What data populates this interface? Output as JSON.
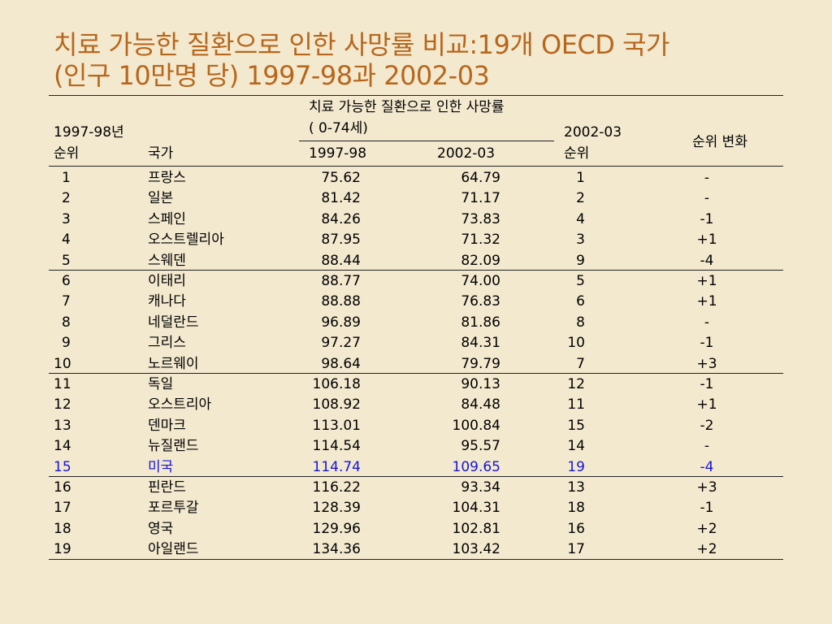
{
  "title": {
    "line1": "치료 가능한 질환으로 인한 사망률 비교:19개 OECD 국가",
    "line2": "(인구 10만명 당) 1997-98과 2002-03"
  },
  "header": {
    "rank1997_line1": "1997-98년",
    "rank1997_line2": "순위",
    "country": "국가",
    "mortality_line1": "치료 가능한 질환으로 인한 사망률",
    "mortality_line2": "( 0-74세)",
    "col_1997": "1997-98",
    "col_2002": "2002-03",
    "rank2002_line1": "2002-03",
    "rank2002_line2": "순위",
    "change": "순위 변화"
  },
  "rows": [
    {
      "rank1997": "1",
      "country": "프랑스",
      "v1997": "75.62",
      "v2002": "64.79",
      "rank2002": "1",
      "change": "-"
    },
    {
      "rank1997": "2",
      "country": "일본",
      "v1997": "81.42",
      "v2002": "71.17",
      "rank2002": "2",
      "change": "-"
    },
    {
      "rank1997": "3",
      "country": "스페인",
      "v1997": "84.26",
      "v2002": "73.83",
      "rank2002": "4",
      "change": "-1"
    },
    {
      "rank1997": "4",
      "country": "오스트렐리아",
      "v1997": "87.95",
      "v2002": "71.32",
      "rank2002": "3",
      "change": "+1"
    },
    {
      "rank1997": "5",
      "country": "스웨덴",
      "v1997": "88.44",
      "v2002": "82.09",
      "rank2002": "9",
      "change": "-4"
    },
    {
      "rank1997": "6",
      "country": "이태리",
      "v1997": "88.77",
      "v2002": "74.00",
      "rank2002": "5",
      "change": "+1"
    },
    {
      "rank1997": "7",
      "country": "캐나다",
      "v1997": "88.88",
      "v2002": "76.83",
      "rank2002": "6",
      "change": "+1"
    },
    {
      "rank1997": "8",
      "country": "네덜란드",
      "v1997": "96.89",
      "v2002": "81.86",
      "rank2002": "8",
      "change": "-"
    },
    {
      "rank1997": "9",
      "country": "그리스",
      "v1997": "97.27",
      "v2002": "84.31",
      "rank2002": "10",
      "change": "-1"
    },
    {
      "rank1997": "10",
      "country": "노르웨이",
      "v1997": "98.64",
      "v2002": "79.79",
      "rank2002": "7",
      "change": "+3"
    },
    {
      "rank1997": "11",
      "country": "독일",
      "v1997": "106.18",
      "v2002": "90.13",
      "rank2002": "12",
      "change": "-1"
    },
    {
      "rank1997": "12",
      "country": "오스트리아",
      "v1997": "108.92",
      "v2002": "84.48",
      "rank2002": "11",
      "change": "+1"
    },
    {
      "rank1997": "13",
      "country": "덴마크",
      "v1997": "113.01",
      "v2002": "100.84",
      "rank2002": "15",
      "change": "-2"
    },
    {
      "rank1997": "14",
      "country": "뉴질랜드",
      "v1997": "114.54",
      "v2002": "95.57",
      "rank2002": "14",
      "change": "-"
    },
    {
      "rank1997": "15",
      "country": "미국",
      "v1997": "114.74",
      "v2002": "109.65",
      "rank2002": "19",
      "change": "-4",
      "highlight": true
    },
    {
      "rank1997": "16",
      "country": "핀란드",
      "v1997": "116.22",
      "v2002": "93.34",
      "rank2002": "13",
      "change": "+3"
    },
    {
      "rank1997": "17",
      "country": "포르투갈",
      "v1997": "128.39",
      "v2002": "104.31",
      "rank2002": "18",
      "change": "-1"
    },
    {
      "rank1997": "18",
      "country": "영국",
      "v1997": "129.96",
      "v2002": "102.81",
      "rank2002": "16",
      "change": "+2"
    },
    {
      "rank1997": "19",
      "country": "아일랜드",
      "v1997": "134.36",
      "v2002": "103.42",
      "rank2002": "17",
      "change": "+2"
    }
  ],
  "colors": {
    "background": "#F3E9CF",
    "title": "#B8661C",
    "highlight": "#1515D8"
  }
}
